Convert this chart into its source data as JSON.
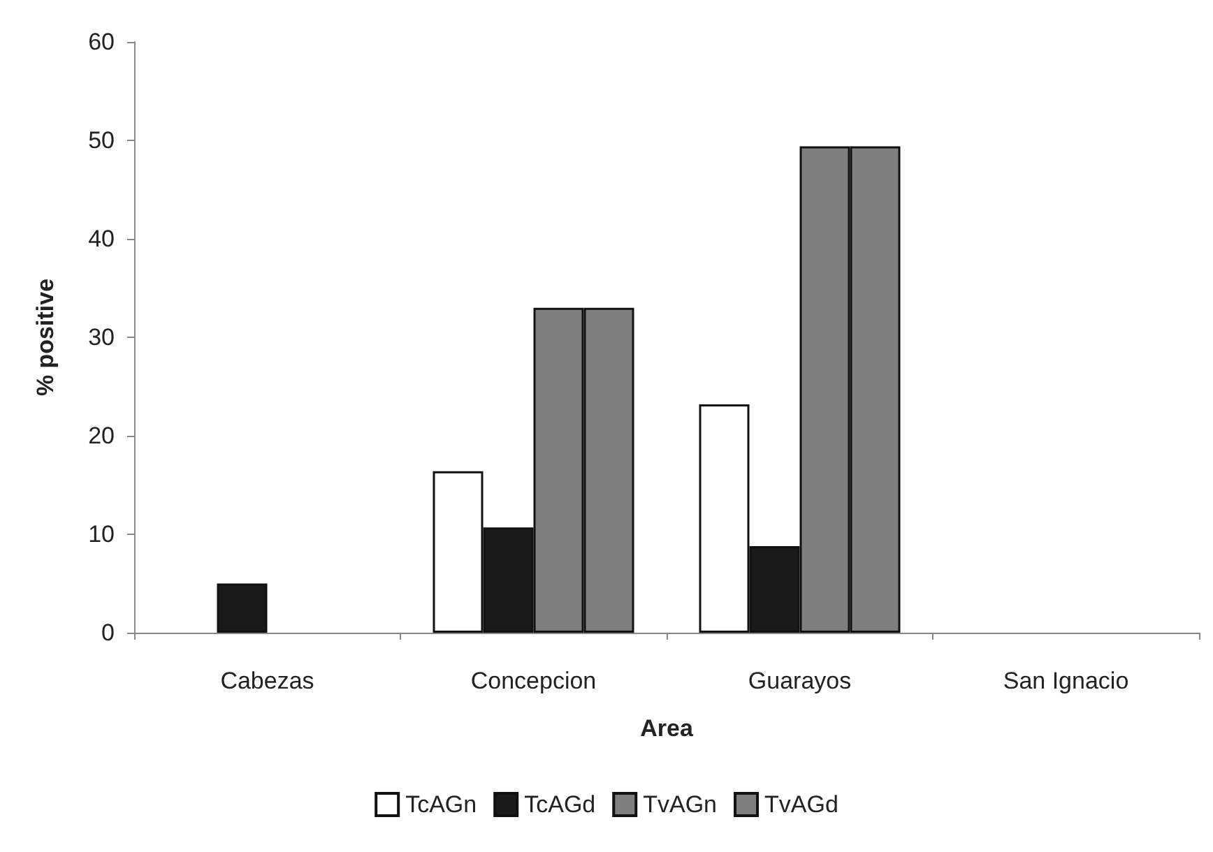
{
  "chart_data": {
    "type": "bar",
    "xlabel": "Area",
    "ylabel": "% positive",
    "categories": [
      "Cabezas",
      "Concepcion",
      "Guarayos",
      "San Ignacio"
    ],
    "series": [
      {
        "name": "TcAGn",
        "color": "#ffffff",
        "values": [
          null,
          16.4,
          23.2,
          null
        ]
      },
      {
        "name": "TcAGd",
        "color": "#1a1a1a",
        "values": [
          5,
          10.7,
          8.8,
          null
        ]
      },
      {
        "name": "TvAGn",
        "color": "#7f7f7f",
        "values": [
          null,
          33,
          49.4,
          null
        ]
      },
      {
        "name": "TvAGd",
        "color": "#7f7f7f",
        "values": [
          null,
          33,
          49.4,
          null
        ]
      }
    ],
    "ylim": [
      0,
      60
    ],
    "yticks": [
      0,
      10,
      20,
      30,
      40,
      50,
      60
    ],
    "grid": false,
    "legend": "bottom"
  }
}
